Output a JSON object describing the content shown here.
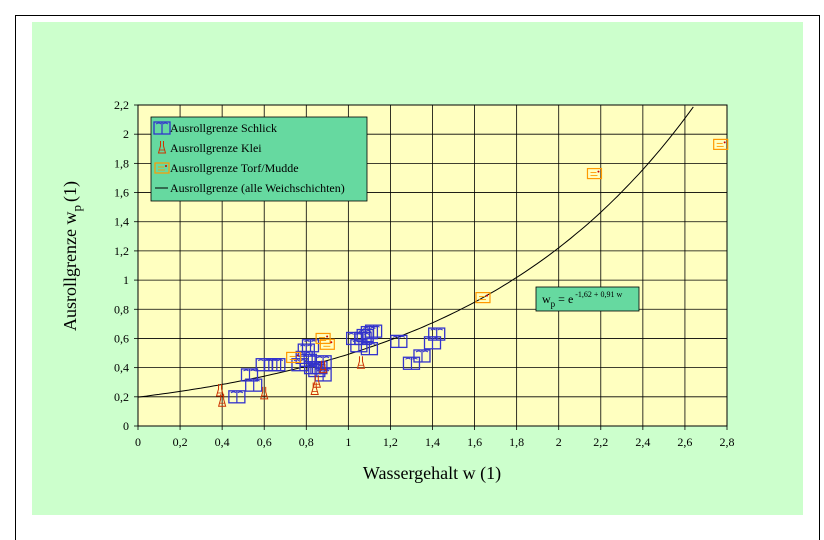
{
  "chart_data": {
    "type": "scatter",
    "xlabel": "Wassergehalt w (1)",
    "ylabel_main": "Ausrollgrenze w",
    "ylabel_sub": "p",
    "ylabel_unit": "(1)",
    "xlim": [
      0,
      2.8
    ],
    "ylim": [
      0,
      2.2
    ],
    "x_ticks": [
      "0",
      "0,2",
      "0,4",
      "0,6",
      "0,8",
      "1",
      "1,2",
      "1,4",
      "1,6",
      "1,8",
      "2",
      "2,2",
      "2,4",
      "2,6",
      "2,8"
    ],
    "y_ticks": [
      "0",
      "0,2",
      "0,4",
      "0,6",
      "0,8",
      "1",
      "1,2",
      "1,4",
      "1,6",
      "1,8",
      "2",
      "2,2"
    ],
    "grid": true,
    "legend_position": "top-left",
    "colors": {
      "background": "#ccffcc",
      "plot_area": "#ffffc0",
      "schlick": "#3333cc",
      "klei": "#cc3300",
      "torf": "#ff9900",
      "line": "#000000",
      "legend_bg": "#66d9a0"
    },
    "series": [
      {
        "name": "Ausrollgrenze Schlick",
        "marker": "book-icon",
        "points": [
          [
            0.47,
            0.2
          ],
          [
            0.55,
            0.28
          ],
          [
            0.53,
            0.35
          ],
          [
            0.6,
            0.42
          ],
          [
            0.64,
            0.42
          ],
          [
            0.66,
            0.42
          ],
          [
            0.77,
            0.42
          ],
          [
            0.79,
            0.47
          ],
          [
            0.8,
            0.52
          ],
          [
            0.82,
            0.55
          ],
          [
            0.81,
            0.45
          ],
          [
            0.83,
            0.4
          ],
          [
            0.85,
            0.38
          ],
          [
            0.86,
            0.4
          ],
          [
            0.88,
            0.44
          ],
          [
            0.88,
            0.35
          ],
          [
            1.03,
            0.6
          ],
          [
            1.05,
            0.55
          ],
          [
            1.07,
            0.6
          ],
          [
            1.08,
            0.62
          ],
          [
            1.1,
            0.64
          ],
          [
            1.12,
            0.65
          ],
          [
            1.1,
            0.53
          ],
          [
            1.24,
            0.58
          ],
          [
            1.3,
            0.43
          ],
          [
            1.35,
            0.48
          ],
          [
            1.4,
            0.57
          ],
          [
            1.42,
            0.63
          ]
        ]
      },
      {
        "name": "Ausrollgrenze Klei",
        "marker": "flask-icon",
        "points": [
          [
            0.39,
            0.24
          ],
          [
            0.4,
            0.17
          ],
          [
            0.6,
            0.22
          ],
          [
            0.84,
            0.25
          ],
          [
            0.85,
            0.3
          ],
          [
            0.88,
            0.4
          ],
          [
            1.06,
            0.43
          ]
        ]
      },
      {
        "name": "Ausrollgrenze Torf/Mudde",
        "marker": "note-icon",
        "points": [
          [
            0.74,
            0.47
          ],
          [
            0.88,
            0.6
          ],
          [
            0.9,
            0.56
          ],
          [
            1.64,
            0.88
          ],
          [
            2.17,
            1.73
          ],
          [
            2.77,
            1.93
          ]
        ]
      },
      {
        "name": "Ausrollgrenze (alle Weichschichten)",
        "type": "line",
        "formula": "wp = e^(-1.62 + 0.91 w)"
      }
    ],
    "annotation": {
      "prefix": "w",
      "subscript": "p",
      "equals": " = e",
      "exponent": "-1,62 + 0,91 w"
    }
  }
}
